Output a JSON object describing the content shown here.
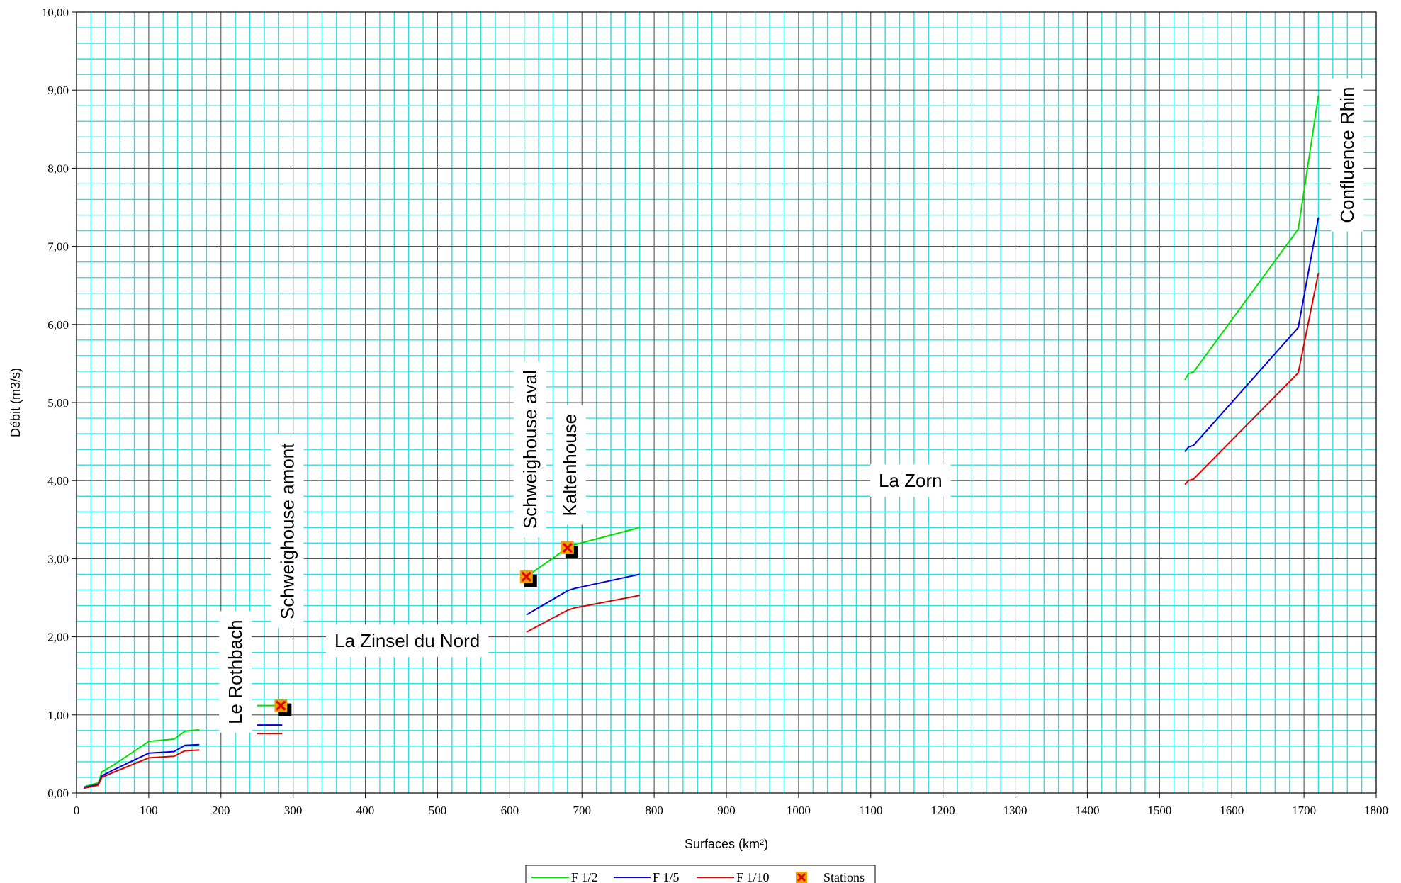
{
  "chart_data": {
    "type": "line",
    "xlabel": "Surfaces (km²)",
    "ylabel": "Débit (m3/s)",
    "xlim": [
      0,
      1800
    ],
    "ylim": [
      0,
      10
    ],
    "x_ticks": [
      "0",
      "100",
      "200",
      "300",
      "400",
      "500",
      "600",
      "700",
      "800",
      "900",
      "1000",
      "1100",
      "1200",
      "1300",
      "1400",
      "1500",
      "1600",
      "1700",
      "1800"
    ],
    "y_ticks": [
      "0,00",
      "1,00",
      "2,00",
      "3,00",
      "4,00",
      "5,00",
      "6,00",
      "7,00",
      "8,00",
      "9,00",
      "10,00"
    ],
    "grid": {
      "major": true,
      "minor": true,
      "major_color": "#555555",
      "minor_color": "#33dddd",
      "minor_step_x": 20,
      "minor_step_y": 0.2
    },
    "series": [
      {
        "name": "F 1/2",
        "color": "#00e000",
        "segments": [
          [
            [
              10,
              0.08
            ],
            [
              30,
              0.13
            ],
            [
              35,
              0.27
            ],
            [
              50,
              0.35
            ],
            [
              100,
              0.66
            ],
            [
              135,
              0.69
            ],
            [
              150,
              0.79
            ],
            [
              170,
              0.81
            ]
          ],
          [
            [
              250,
              1.12
            ],
            [
              285,
              1.12
            ]
          ],
          [
            [
              623,
              2.77
            ],
            [
              680,
              3.14
            ],
            [
              690,
              3.18
            ],
            [
              780,
              3.4
            ]
          ],
          [
            [
              1535,
              5.29
            ],
            [
              1540,
              5.37
            ],
            [
              1547,
              5.39
            ],
            [
              1692,
              7.22
            ],
            [
              1720,
              8.93
            ]
          ]
        ]
      },
      {
        "name": "F 1/5",
        "color": "#0000e0",
        "segments": [
          [
            [
              10,
              0.07
            ],
            [
              30,
              0.11
            ],
            [
              35,
              0.22
            ],
            [
              50,
              0.29
            ],
            [
              100,
              0.51
            ],
            [
              135,
              0.53
            ],
            [
              150,
              0.61
            ],
            [
              170,
              0.62
            ]
          ],
          [
            [
              250,
              0.87
            ],
            [
              285,
              0.87
            ]
          ],
          [
            [
              623,
              2.28
            ],
            [
              680,
              2.59
            ],
            [
              690,
              2.62
            ],
            [
              780,
              2.8
            ]
          ],
          [
            [
              1535,
              4.37
            ],
            [
              1540,
              4.43
            ],
            [
              1547,
              4.45
            ],
            [
              1692,
              5.96
            ],
            [
              1720,
              7.37
            ]
          ]
        ]
      },
      {
        "name": "F 1/10",
        "color": "#e00000",
        "segments": [
          [
            [
              10,
              0.06
            ],
            [
              30,
              0.1
            ],
            [
              35,
              0.2
            ],
            [
              50,
              0.26
            ],
            [
              100,
              0.45
            ],
            [
              135,
              0.47
            ],
            [
              150,
              0.54
            ],
            [
              170,
              0.55
            ]
          ],
          [
            [
              250,
              0.76
            ],
            [
              285,
              0.76
            ]
          ],
          [
            [
              623,
              2.06
            ],
            [
              680,
              2.34
            ],
            [
              690,
              2.37
            ],
            [
              780,
              2.53
            ]
          ],
          [
            [
              1535,
              3.95
            ],
            [
              1540,
              4.0
            ],
            [
              1547,
              4.02
            ],
            [
              1692,
              5.38
            ],
            [
              1720,
              6.66
            ]
          ]
        ]
      }
    ],
    "stations": {
      "name": "Stations",
      "points": [
        [
          283,
          1.12
        ],
        [
          623,
          2.77
        ],
        [
          680,
          3.14
        ]
      ]
    },
    "annotations": [
      {
        "text": "Le Rothbach",
        "x": 220,
        "y": 1.55,
        "rotated": true
      },
      {
        "text": "Schweighouse amont",
        "x": 292,
        "y": 3.35,
        "rotated": true
      },
      {
        "text": "La Zinsel du Nord",
        "x": 458,
        "y": 1.95,
        "rotated": false
      },
      {
        "text": "Schweighouse aval",
        "x": 628,
        "y": 4.4,
        "rotated": true
      },
      {
        "text": "Kaltenhouse",
        "x": 683,
        "y": 4.2,
        "rotated": true
      },
      {
        "text": "La Zorn",
        "x": 1155,
        "y": 4.0,
        "rotated": false
      },
      {
        "text": "Confluence Rhin",
        "x": 1760,
        "y": 8.17,
        "rotated": true
      }
    ],
    "legend": {
      "placement": "bottom-center",
      "entries": [
        "F 1/2",
        "F 1/5",
        "F 1/10",
        "Stations"
      ]
    }
  }
}
